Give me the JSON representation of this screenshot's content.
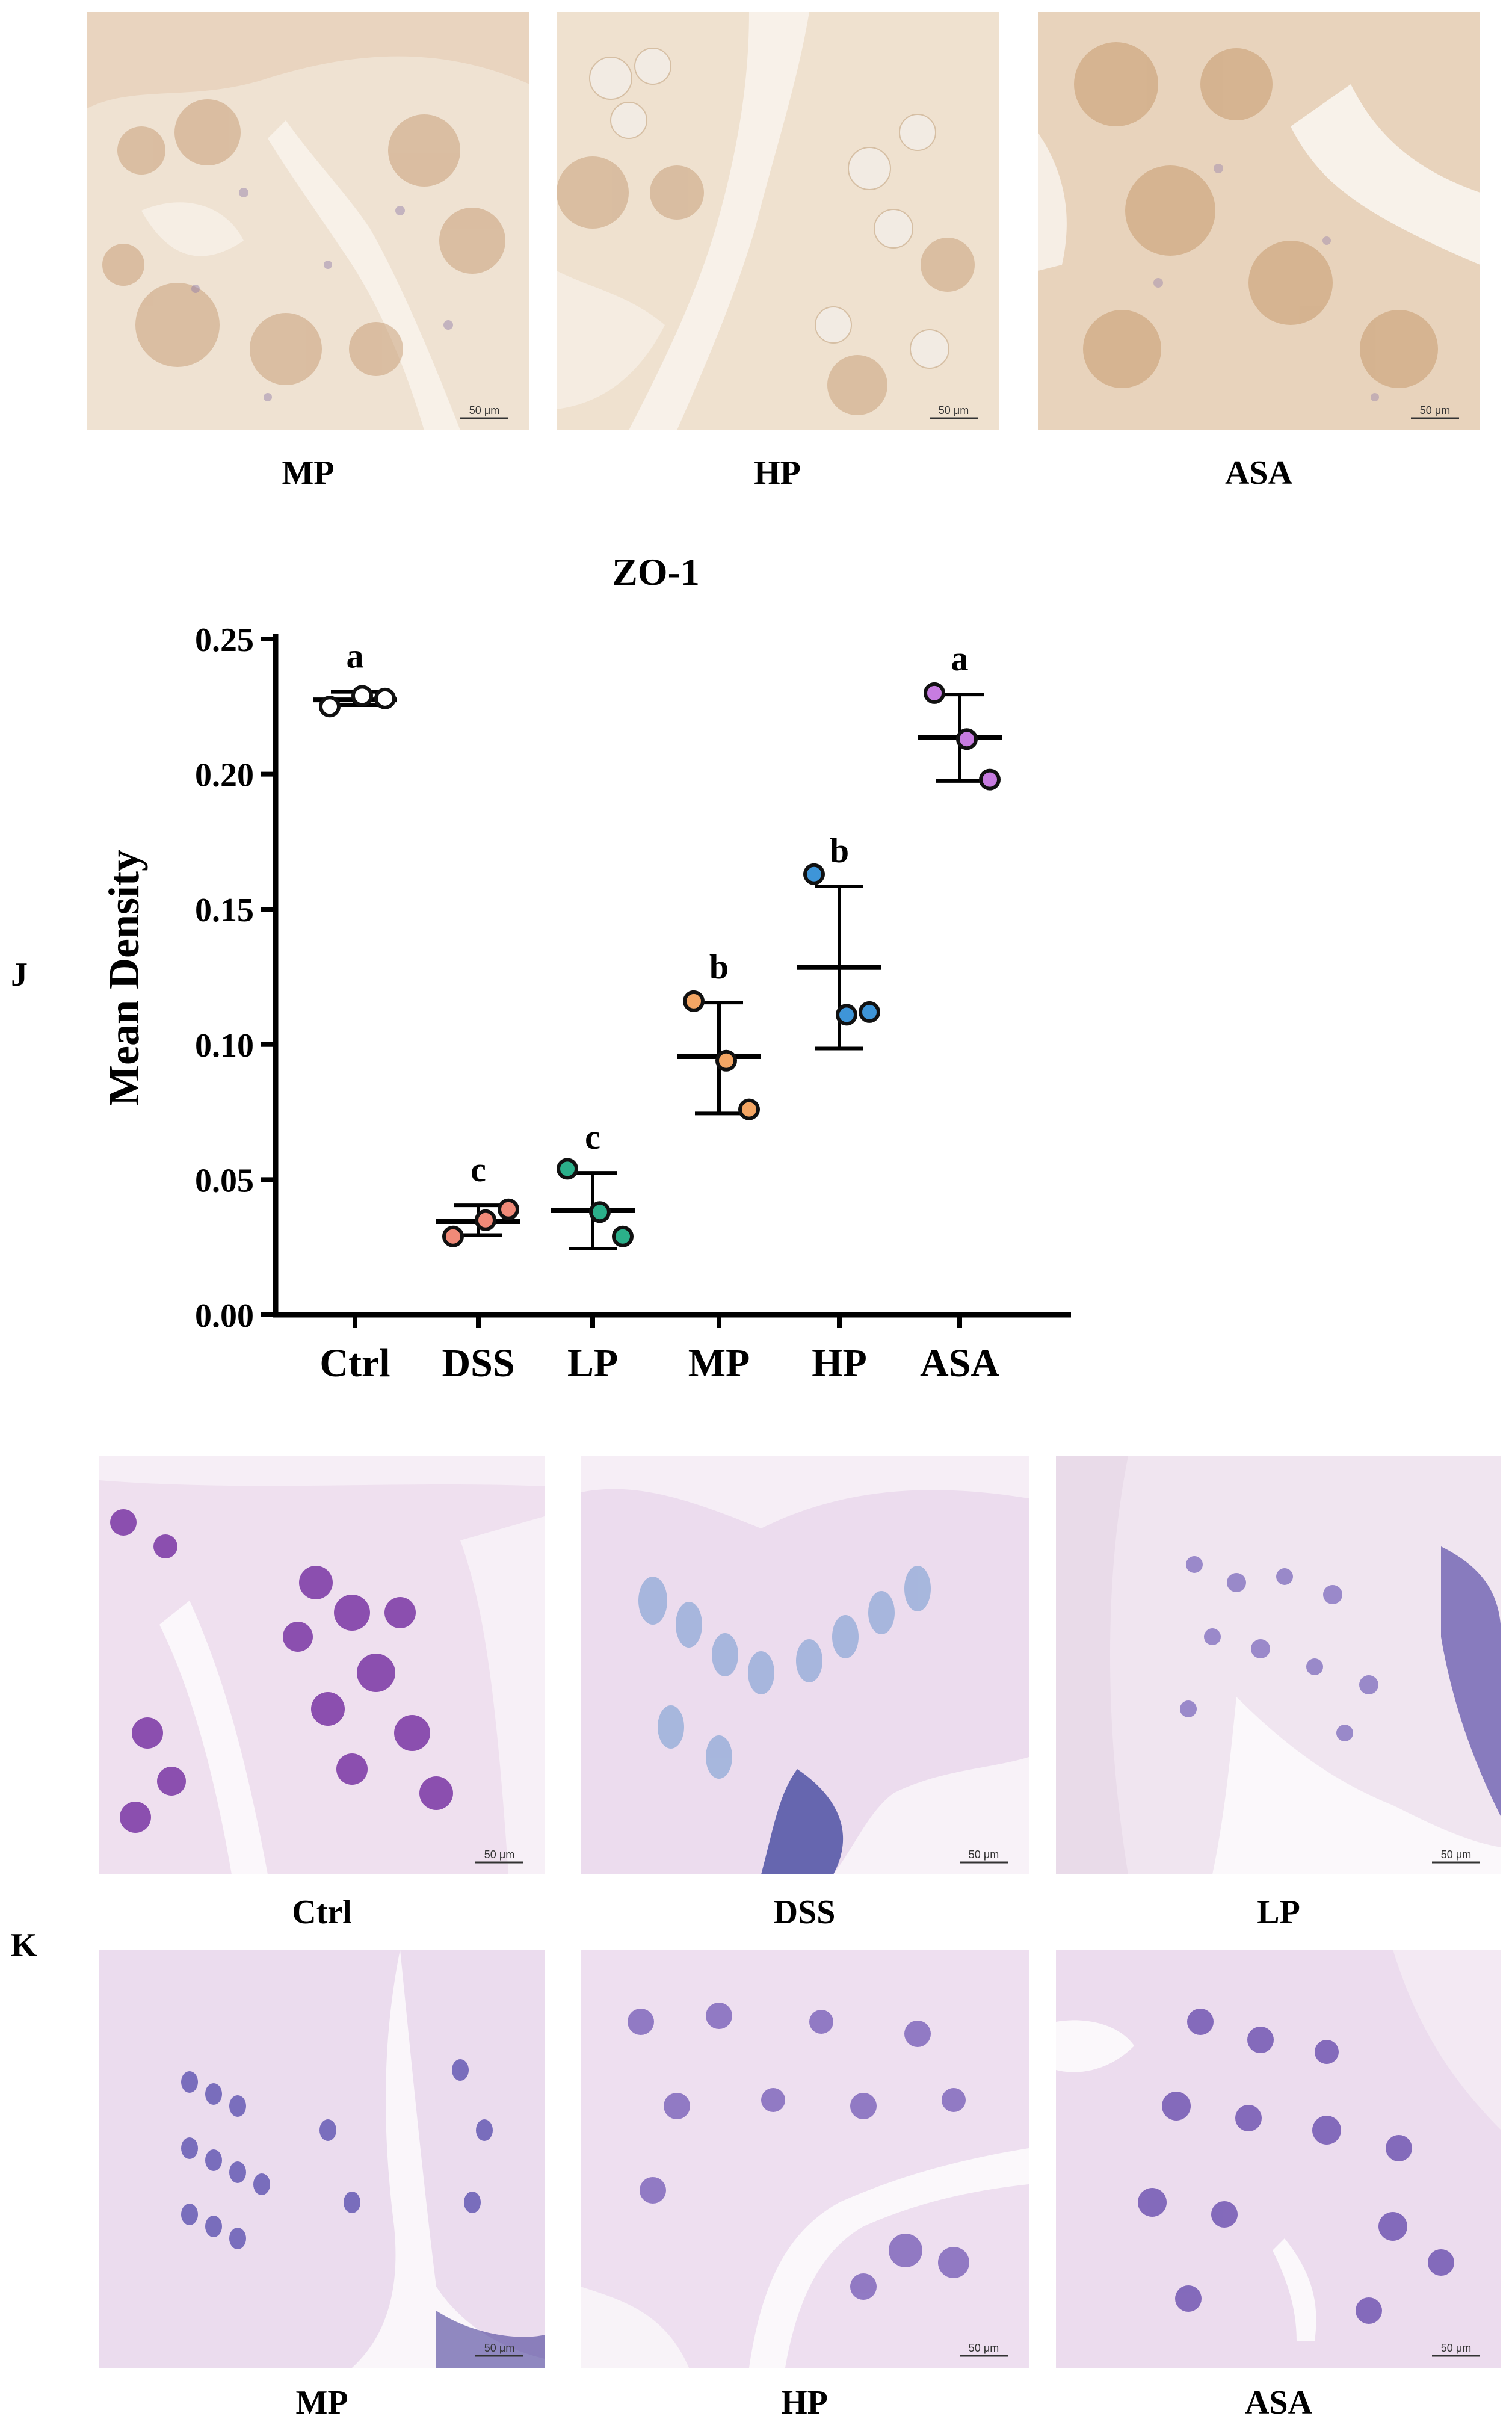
{
  "ihc_row": {
    "panels": [
      {
        "label": "MP",
        "scale": "50 μm"
      },
      {
        "label": "HP",
        "scale": "50 μm"
      },
      {
        "label": "ASA",
        "scale": "50 μm"
      }
    ]
  },
  "panel_letters": {
    "chart": "J",
    "pas": "K"
  },
  "chart_data": {
    "type": "scatter",
    "title": "ZO-1",
    "xlabel": "",
    "ylabel": "Mean Density",
    "ylim": [
      0,
      0.25
    ],
    "yticks": [
      "0.00",
      "0.05",
      "0.10",
      "0.15",
      "0.20",
      "0.25"
    ],
    "categories": [
      "Ctrl",
      "DSS",
      "LP",
      "MP",
      "HP",
      "ASA"
    ],
    "groups": [
      {
        "name": "Ctrl",
        "points": [
          0.225,
          0.229,
          0.228
        ],
        "mean": 0.2275,
        "sd_low": 0.2255,
        "sd_high": 0.2305,
        "letter": "a",
        "color": "#ffffff"
      },
      {
        "name": "DSS",
        "points": [
          0.029,
          0.035,
          0.039
        ],
        "mean": 0.0345,
        "sd_low": 0.0295,
        "sd_high": 0.0405,
        "letter": "c",
        "color": "#f08a78"
      },
      {
        "name": "LP",
        "points": [
          0.054,
          0.038,
          0.029
        ],
        "mean": 0.0385,
        "sd_low": 0.0245,
        "sd_high": 0.0525,
        "letter": "c",
        "color": "#2bb08a"
      },
      {
        "name": "MP",
        "points": [
          0.116,
          0.094,
          0.076
        ],
        "mean": 0.0955,
        "sd_low": 0.0745,
        "sd_high": 0.1155,
        "letter": "b",
        "color": "#f4a664"
      },
      {
        "name": "HP",
        "points": [
          0.163,
          0.111,
          0.112
        ],
        "mean": 0.1285,
        "sd_low": 0.0985,
        "sd_high": 0.1585,
        "letter": "b",
        "color": "#3e95d8"
      },
      {
        "name": "ASA",
        "points": [
          0.23,
          0.213,
          0.198
        ],
        "mean": 0.2135,
        "sd_low": 0.1975,
        "sd_high": 0.2295,
        "letter": "a",
        "color": "#c77ce0"
      }
    ]
  },
  "pas_rows": [
    {
      "panels": [
        {
          "label": "Ctrl",
          "scale": "50 μm"
        },
        {
          "label": "DSS",
          "scale": "50 μm"
        },
        {
          "label": "LP",
          "scale": "50 μm"
        }
      ]
    },
    {
      "panels": [
        {
          "label": "MP",
          "scale": "50 μm"
        },
        {
          "label": "HP",
          "scale": "50 μm"
        },
        {
          "label": "ASA",
          "scale": "50 μm"
        }
      ]
    }
  ]
}
